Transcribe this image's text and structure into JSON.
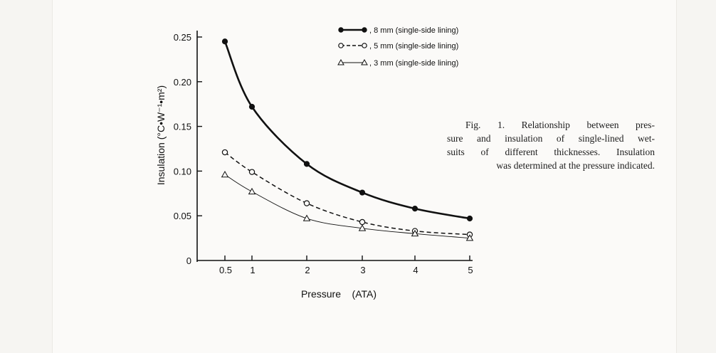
{
  "caption": {
    "lines": [
      "Fig. 1.  Relationship between pres-",
      "sure and insulation of single-lined wet-",
      "suits of different thicknesses. Insulation",
      "was determined at the pressure indicated."
    ]
  },
  "chart_data": {
    "type": "line",
    "xlabel": "Pressure    (ATA)",
    "ylabel": "Insulation (°C•W⁻¹•m²)",
    "xlim": [
      0.5,
      5
    ],
    "ylim": [
      0,
      0.25
    ],
    "x_ticks": [
      0.5,
      1,
      2,
      3,
      4,
      5
    ],
    "x_tick_labels": [
      "0.5",
      "1",
      "2",
      "3",
      "4",
      "5"
    ],
    "y_ticks": [
      0,
      0.05,
      0.1,
      0.15,
      0.2,
      0.25
    ],
    "y_tick_labels": [
      "0",
      "0.05",
      "0.10",
      "0.15",
      "0.20",
      "0.25"
    ],
    "grid": false,
    "legend_position": "top",
    "series": [
      {
        "name": "8 mm (single-side lining)",
        "marker": "filled-circle",
        "line": "solid-thick",
        "color": "#111111",
        "x": [
          0.5,
          1,
          2,
          3,
          4,
          5
        ],
        "y": [
          0.245,
          0.172,
          0.108,
          0.076,
          0.058,
          0.047
        ]
      },
      {
        "name": "5 mm (single-side lining)",
        "marker": "open-circle",
        "line": "dashed",
        "color": "#111111",
        "x": [
          0.5,
          1,
          2,
          3,
          4,
          5
        ],
        "y": [
          0.121,
          0.099,
          0.064,
          0.043,
          0.033,
          0.029
        ]
      },
      {
        "name": "3 mm (single-side lining)",
        "marker": "open-triangle",
        "line": "solid-thin",
        "color": "#111111",
        "x": [
          0.5,
          1,
          2,
          3,
          4,
          5
        ],
        "y": [
          0.096,
          0.077,
          0.047,
          0.036,
          0.03,
          0.025
        ]
      }
    ]
  }
}
